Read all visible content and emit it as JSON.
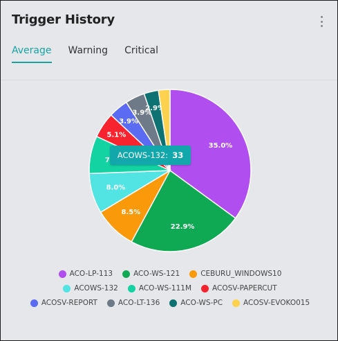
{
  "header": {
    "title": "Trigger History"
  },
  "tabs": [
    {
      "label": "Average"
    },
    {
      "label": "Warning"
    },
    {
      "label": "Critical"
    }
  ],
  "tooltip": {
    "label": "ACOWS-132:",
    "value": "33"
  },
  "chart_data": {
    "type": "pie",
    "categories": [
      "ACO-LP-113",
      "ACO-WS-121",
      "CEBURU_WINDOWS10",
      "ACOWS-132",
      "ACO-WS-111M",
      "ACOSV-PAPERCUT",
      "ACOSV-REPORT",
      "ACO-LT-136",
      "ACO-WS-PC",
      "ACOSV-EVOKO015"
    ],
    "values": [
      35.0,
      22.9,
      8.5,
      8.0,
      7.5,
      5.1,
      3.9,
      3.9,
      2.9,
      2.3
    ],
    "data_labels": [
      "35.0%",
      "22.9%",
      "8.5%",
      "8.0%",
      "7.5%",
      "5.1%",
      "3.9%",
      "3.9%",
      "2.9%",
      ""
    ],
    "colors": [
      "#b04ef0",
      "#0fa853",
      "#fa9a0a",
      "#52e3e3",
      "#14d3a3",
      "#f7232e",
      "#5b6cf3",
      "#6e7a88",
      "#0e7272",
      "#fed24e"
    ],
    "legend_placement": "bottom",
    "title": ""
  }
}
